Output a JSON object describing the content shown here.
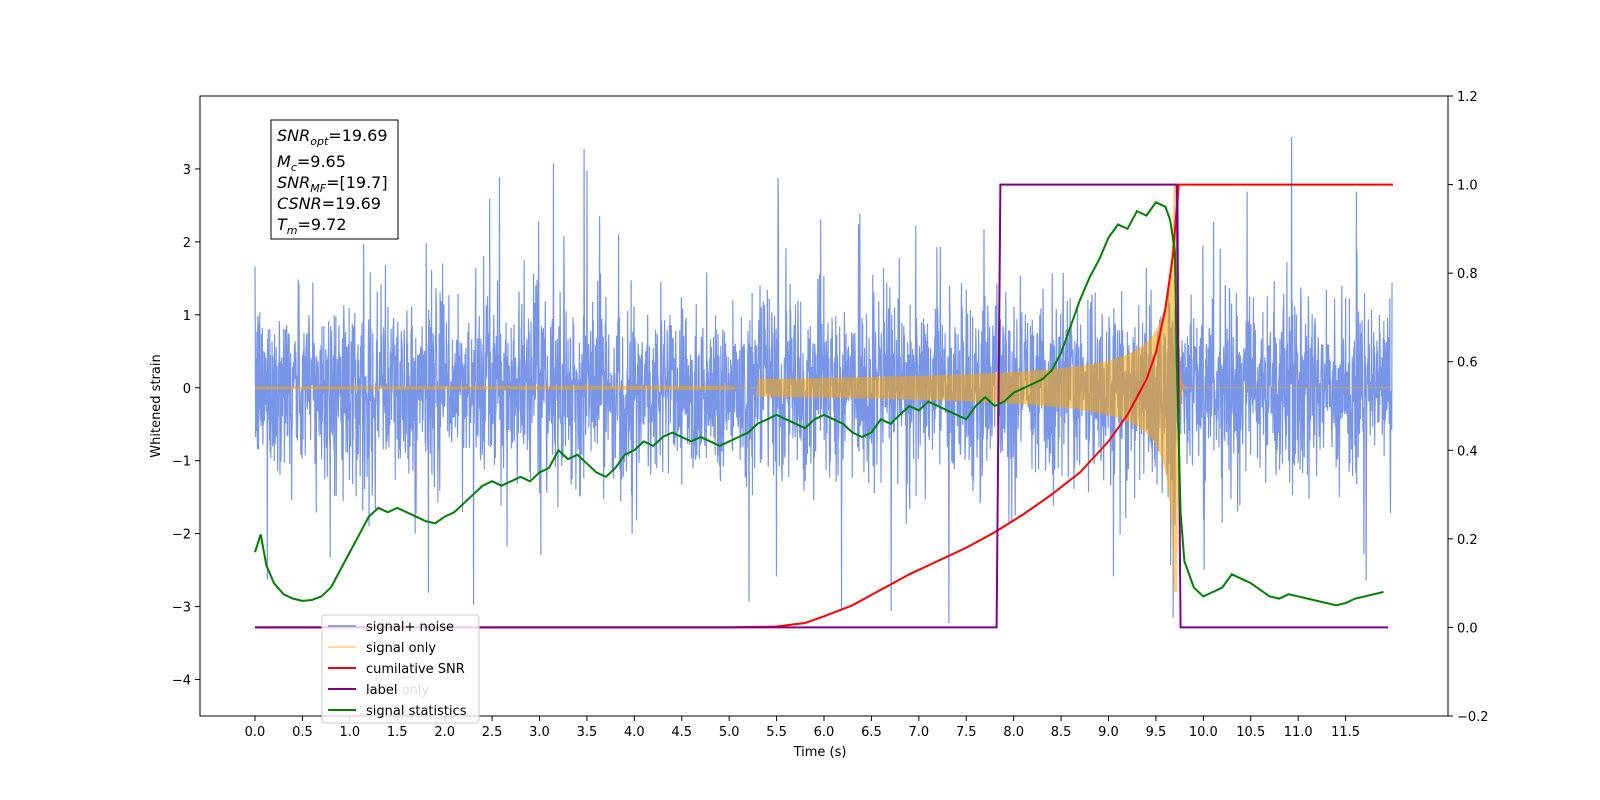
{
  "chart_data": {
    "type": "line",
    "title": "",
    "xlabel": "Time (s)",
    "ylabel": "Whitened strain",
    "xlim": [
      -0.58,
      12.58
    ],
    "ylim": [
      -4.5,
      4.0
    ],
    "y2lim": [
      -0.2,
      1.2
    ],
    "x_ticks": [
      "0.0",
      "0.5",
      "1.0",
      "1.5",
      "2.0",
      "2.5",
      "3.0",
      "3.5",
      "4.0",
      "4.5",
      "5.0",
      "5.5",
      "6.0",
      "6.5",
      "7.0",
      "7.5",
      "8.0",
      "8.5",
      "9.0",
      "9.5",
      "10.0",
      "10.5",
      "11.0",
      "11.5"
    ],
    "y_ticks": [
      "3",
      "2",
      "1",
      "0",
      "−1",
      "−2",
      "−3",
      "−4"
    ],
    "y2_ticks": [
      "1.2",
      "1.0",
      "0.8",
      "0.6",
      "0.4",
      "0.2",
      "0.0",
      "−0.2"
    ],
    "grid": false,
    "legend_position": "lower-left",
    "annotation": {
      "snr_opt": {
        "sym": "SNR",
        "sub": "opt",
        "val": "=19.69"
      },
      "mc": {
        "sym": "M",
        "sub": "c",
        "val": "=9.65"
      },
      "snr_mf": {
        "sym": "SNR",
        "sub": "MF",
        "val": "=[19.7]"
      },
      "csnr": {
        "sym": "CSNR",
        "sub": "",
        "val": "=19.69"
      },
      "tm": {
        "sym": "T",
        "sub": "m",
        "val": "=9.72"
      }
    },
    "legend": {
      "signal_noise": "signal+ noise",
      "signal_only": "signal only",
      "cumulative_snr": "cumilative SNR",
      "label": "label",
      "label_only_hidden": "label only",
      "signal_statistics": "signal statistics"
    },
    "colors": {
      "signal_noise": "#6a89e5",
      "signal_only": "#ffa500",
      "cumulative_snr": "#ff0000",
      "label": "#800080",
      "signal_statistics": "#008000",
      "overlap_fill": "#b8996d"
    },
    "series": [
      {
        "name": "signal+ noise",
        "axis": "left",
        "kind": "whitened-noise",
        "std": 0.6,
        "peak_max": 3.6,
        "peak_min": -3.35,
        "t_start": 0.0,
        "t_end": 11.99
      },
      {
        "name": "signal only",
        "axis": "left",
        "kind": "chirp",
        "merger_time": 9.72,
        "peak_amp": 2.8,
        "t_start": 0.0,
        "t_end": 11.99
      },
      {
        "name": "cumilative SNR",
        "axis": "right",
        "x": [
          0.0,
          5.0,
          5.5,
          5.8,
          6.0,
          6.3,
          6.6,
          6.9,
          7.2,
          7.5,
          7.8,
          8.1,
          8.4,
          8.7,
          9.0,
          9.2,
          9.4,
          9.5,
          9.6,
          9.68,
          9.72,
          9.74,
          12.0
        ],
        "y": [
          0.0,
          0.0,
          0.002,
          0.01,
          0.025,
          0.05,
          0.085,
          0.12,
          0.15,
          0.18,
          0.215,
          0.255,
          0.3,
          0.35,
          0.42,
          0.48,
          0.56,
          0.62,
          0.72,
          0.84,
          0.95,
          1.0,
          1.0
        ]
      },
      {
        "name": "label",
        "axis": "right",
        "x": [
          0.0,
          7.82,
          7.86,
          9.72,
          9.76,
          11.95
        ],
        "y": [
          0.0,
          0.0,
          1.0,
          1.0,
          0.0,
          0.0
        ]
      },
      {
        "name": "signal statistics",
        "axis": "right",
        "x": [
          0.0,
          0.06,
          0.12,
          0.2,
          0.3,
          0.4,
          0.5,
          0.6,
          0.7,
          0.8,
          0.9,
          1.0,
          1.1,
          1.2,
          1.3,
          1.4,
          1.5,
          1.6,
          1.7,
          1.8,
          1.9,
          2.0,
          2.1,
          2.2,
          2.3,
          2.4,
          2.5,
          2.6,
          2.7,
          2.8,
          2.9,
          3.0,
          3.1,
          3.2,
          3.3,
          3.4,
          3.5,
          3.6,
          3.7,
          3.8,
          3.9,
          4.0,
          4.1,
          4.2,
          4.3,
          4.4,
          4.5,
          4.6,
          4.7,
          4.8,
          4.9,
          5.0,
          5.1,
          5.2,
          5.3,
          5.4,
          5.5,
          5.6,
          5.7,
          5.8,
          5.9,
          6.0,
          6.1,
          6.2,
          6.3,
          6.4,
          6.5,
          6.6,
          6.7,
          6.8,
          6.9,
          7.0,
          7.1,
          7.2,
          7.3,
          7.4,
          7.5,
          7.6,
          7.7,
          7.8,
          7.9,
          8.0,
          8.1,
          8.2,
          8.3,
          8.4,
          8.5,
          8.6,
          8.7,
          8.8,
          8.9,
          9.0,
          9.1,
          9.2,
          9.3,
          9.4,
          9.5,
          9.6,
          9.65,
          9.7,
          9.72,
          9.76,
          9.8,
          9.9,
          10.0,
          10.1,
          10.2,
          10.3,
          10.4,
          10.5,
          10.6,
          10.7,
          10.8,
          10.9,
          11.0,
          11.1,
          11.2,
          11.3,
          11.4,
          11.5,
          11.6,
          11.7,
          11.8,
          11.9
        ],
        "y": [
          0.17,
          0.21,
          0.14,
          0.1,
          0.075,
          0.065,
          0.06,
          0.062,
          0.07,
          0.09,
          0.13,
          0.17,
          0.21,
          0.25,
          0.27,
          0.26,
          0.27,
          0.26,
          0.25,
          0.24,
          0.235,
          0.25,
          0.26,
          0.28,
          0.3,
          0.32,
          0.33,
          0.32,
          0.33,
          0.34,
          0.33,
          0.35,
          0.36,
          0.4,
          0.38,
          0.39,
          0.37,
          0.35,
          0.34,
          0.36,
          0.39,
          0.4,
          0.42,
          0.41,
          0.43,
          0.44,
          0.43,
          0.42,
          0.43,
          0.42,
          0.41,
          0.42,
          0.43,
          0.44,
          0.46,
          0.47,
          0.48,
          0.47,
          0.46,
          0.45,
          0.47,
          0.48,
          0.47,
          0.46,
          0.44,
          0.43,
          0.44,
          0.47,
          0.46,
          0.48,
          0.5,
          0.49,
          0.51,
          0.5,
          0.49,
          0.48,
          0.47,
          0.5,
          0.52,
          0.5,
          0.51,
          0.53,
          0.54,
          0.55,
          0.56,
          0.58,
          0.62,
          0.68,
          0.74,
          0.79,
          0.83,
          0.88,
          0.91,
          0.9,
          0.94,
          0.93,
          0.96,
          0.95,
          0.92,
          0.85,
          0.6,
          0.26,
          0.15,
          0.09,
          0.07,
          0.08,
          0.09,
          0.12,
          0.11,
          0.1,
          0.085,
          0.07,
          0.065,
          0.075,
          0.07,
          0.065,
          0.06,
          0.055,
          0.05,
          0.055,
          0.065,
          0.07,
          0.075,
          0.08
        ]
      }
    ]
  }
}
